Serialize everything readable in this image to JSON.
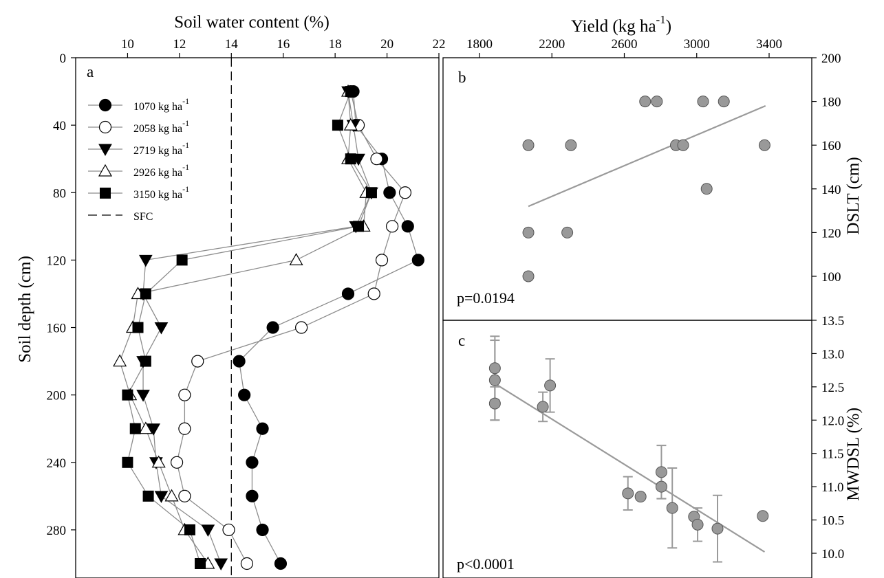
{
  "chart_data": [
    {
      "panel": "a",
      "type": "line",
      "panel_label": "a",
      "xlabel": "Soil water content (%)",
      "ylabel": "Soil depth (cm)",
      "xlim": [
        8,
        22
      ],
      "ylim": [
        305,
        0
      ],
      "x_axis_position": "top",
      "xticks": [
        10,
        12,
        14,
        16,
        18,
        20,
        22
      ],
      "yticks": [
        0,
        40,
        80,
        120,
        160,
        200,
        240,
        280
      ],
      "depth": [
        20,
        40,
        60,
        80,
        100,
        120,
        140,
        160,
        180,
        200,
        220,
        240,
        260,
        280,
        300
      ],
      "legend_position": "top-left",
      "reference_line": {
        "name": "SFC",
        "x": 14,
        "style": "dashed"
      },
      "series": [
        {
          "name": "1070 kg ha",
          "sup": "-1",
          "marker": "circle-filled",
          "values": [
            18.7,
            18.8,
            19.8,
            20.1,
            20.8,
            21.2,
            18.5,
            15.6,
            14.3,
            14.5,
            15.2,
            14.8,
            14.8,
            15.2,
            15.9
          ]
        },
        {
          "name": "2058 kg ha",
          "sup": "-1",
          "marker": "circle-open",
          "values": [
            18.6,
            18.9,
            19.6,
            20.7,
            20.2,
            19.8,
            19.5,
            16.7,
            12.7,
            12.2,
            12.2,
            11.9,
            12.2,
            13.9,
            14.6
          ]
        },
        {
          "name": "2719 kg ha",
          "sup": "-1",
          "marker": "triangle-down-filled",
          "values": [
            18.5,
            18.7,
            18.9,
            19.4,
            18.8,
            10.7,
            10.6,
            11.3,
            10.6,
            10.6,
            11.0,
            11.1,
            11.3,
            13.1,
            13.6
          ]
        },
        {
          "name": "2926 kg ha",
          "sup": "-1",
          "marker": "triangle-up-open",
          "values": [
            18.5,
            18.6,
            18.5,
            19.2,
            19.1,
            16.5,
            10.4,
            10.2,
            9.7,
            10.1,
            10.7,
            11.2,
            11.7,
            12.2,
            13.1
          ]
        },
        {
          "name": "3150 kg ha",
          "sup": "-1",
          "marker": "square-filled",
          "values": [
            18.6,
            18.1,
            18.6,
            19.4,
            18.9,
            12.1,
            10.7,
            10.4,
            10.7,
            10.0,
            10.3,
            10.0,
            10.8,
            12.4,
            12.8
          ]
        }
      ]
    },
    {
      "panel": "b",
      "type": "scatter",
      "panel_label": "b",
      "xlabel": "Yield (kg ha",
      "xlabel_sup": "-1",
      "xlabel_close": ")",
      "ylabel": "DSLT (cm)",
      "xlim": [
        1650,
        3600
      ],
      "ylim": [
        90,
        200
      ],
      "x_axis_position": "top",
      "y_axis_position": "right",
      "xticks": [
        1800,
        2200,
        2600,
        3000,
        3400
      ],
      "yticks": [
        100,
        120,
        140,
        160,
        180,
        200
      ],
      "annotation": "p=0.0194",
      "points": [
        [
          2715,
          180
        ],
        [
          2780,
          180
        ],
        [
          3035,
          180
        ],
        [
          3150,
          180
        ],
        [
          2070,
          160
        ],
        [
          2305,
          160
        ],
        [
          2885,
          160
        ],
        [
          2925,
          160
        ],
        [
          3375,
          160
        ],
        [
          3055,
          140
        ],
        [
          2070,
          120
        ],
        [
          2285,
          120
        ],
        [
          2070,
          100
        ]
      ],
      "fit": [
        [
          2070,
          132
        ],
        [
          3380,
          178
        ]
      ]
    },
    {
      "panel": "c",
      "type": "scatter",
      "panel_label": "c",
      "ylabel": "MWDSL (%)",
      "xlim": [
        1650,
        3600
      ],
      "ylim": [
        9.8,
        13.5
      ],
      "y_axis_position": "right",
      "yticks": [
        10.0,
        10.5,
        11.0,
        11.5,
        12.0,
        12.5,
        13.0,
        13.5
      ],
      "annotation": "p<0.0001",
      "points": [
        {
          "x": 1885,
          "y": 12.78,
          "err": 0.48
        },
        {
          "x": 1885,
          "y": 12.6,
          "err": 0.6
        },
        {
          "x": 1885,
          "y": 12.25,
          "err": 0.25
        },
        {
          "x": 2190,
          "y": 12.52,
          "err": 0.4
        },
        {
          "x": 2150,
          "y": 12.2,
          "err": 0.22
        },
        {
          "x": 2805,
          "y": 11.22,
          "err": 0.4
        },
        {
          "x": 2805,
          "y": 11.0,
          "err": 0.18
        },
        {
          "x": 2620,
          "y": 10.9,
          "err": 0.25
        },
        {
          "x": 2690,
          "y": 10.85,
          "err": 0
        },
        {
          "x": 2865,
          "y": 10.68,
          "err": 0.6
        },
        {
          "x": 2985,
          "y": 10.55,
          "err": 0
        },
        {
          "x": 3005,
          "y": 10.43,
          "err": 0.25
        },
        {
          "x": 3115,
          "y": 10.37,
          "err": 0.5
        },
        {
          "x": 3365,
          "y": 10.56,
          "err": 0
        }
      ],
      "fit": [
        [
          1885,
          12.55
        ],
        [
          3375,
          10.02
        ]
      ]
    }
  ]
}
